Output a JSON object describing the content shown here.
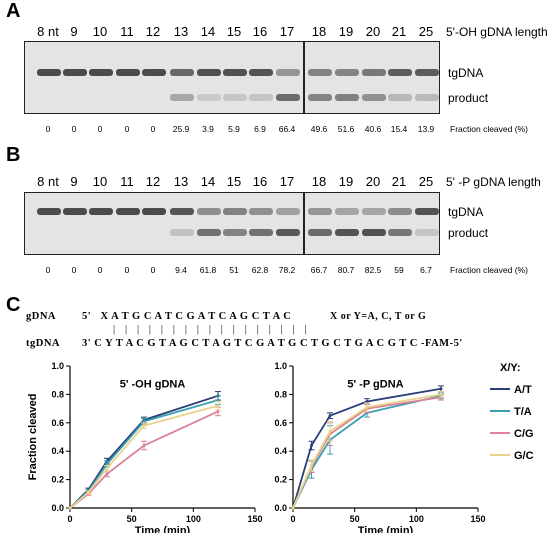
{
  "panel_a": {
    "letter": "A",
    "length_label": "5'-OH gDNA length",
    "lanes": [
      "8 nt",
      "9",
      "10",
      "11",
      "12",
      "13",
      "14",
      "15",
      "16",
      "17",
      "18",
      "19",
      "20",
      "21",
      "25"
    ],
    "tg_label": "tgDNA",
    "product_label": "product",
    "fractions": [
      "0",
      "0",
      "0",
      "0",
      "0",
      "25.9",
      "3.9",
      "5.9",
      "6.9",
      "66.4",
      "49.6",
      "51.6",
      "40.6",
      "15.4",
      "13.9"
    ],
    "fraction_label": "Fraction cleaved  (%)"
  },
  "panel_b": {
    "letter": "B",
    "length_label": "5' -P gDNA length",
    "lanes": [
      "8 nt",
      "9",
      "10",
      "11",
      "12",
      "13",
      "14",
      "15",
      "16",
      "17",
      "18",
      "19",
      "20",
      "21",
      "25"
    ],
    "tg_label": "tgDNA",
    "product_label": "product",
    "fractions": [
      "0",
      "0",
      "0",
      "0",
      "0",
      "9.4",
      "61.8",
      "51",
      "62.8",
      "78.2",
      "66.7",
      "80.7",
      "82.5",
      "59",
      "6.7"
    ],
    "fraction_label": "Fraction cleaved  (%)"
  },
  "panel_c": {
    "letter": "C",
    "gdna_label": "gDNA",
    "gdna_seq": "5'   X A T G C A T C G A T C A G C T A C",
    "pairs": "|   |   |   |   |   |   |   |   |   |   |   |   |   |   |   |   |",
    "tgdna_label": "tgDNA",
    "tgdna_seq": "3' C Y T A C G T A G C T A G T C G A T G C T G C T G A C G T C -FAM-5'",
    "note": "X or Y=A, C, T or G",
    "legend_title": "X/Y:"
  },
  "colors": {
    "AT": "#2a3f7a",
    "TA": "#3a9fb0",
    "CG": "#d9829a",
    "GC": "#e9d28a",
    "gel_bg": "#e4e4e4",
    "band": "#3a3a3a"
  },
  "chart_data": [
    {
      "type": "line",
      "title": "5' -OH gDNA",
      "xlabel": "Time (min)",
      "ylabel": "Fraction cleaved",
      "xlim": [
        0,
        150
      ],
      "ylim": [
        0,
        1.0
      ],
      "xticks": [
        0,
        50,
        100,
        150
      ],
      "yticks": [
        0.0,
        0.2,
        0.4,
        0.6,
        0.8,
        1.0
      ],
      "x": [
        0,
        15,
        30,
        60,
        120
      ],
      "series": [
        {
          "name": "A/T",
          "color": "#2a3f7a",
          "values": [
            0,
            0.13,
            0.33,
            0.62,
            0.79
          ],
          "err": [
            0,
            0.01,
            0.02,
            0.02,
            0.03
          ]
        },
        {
          "name": "T/A",
          "color": "#3a9fb0",
          "values": [
            0,
            0.12,
            0.31,
            0.61,
            0.76
          ],
          "err": [
            0,
            0.01,
            0.02,
            0.02,
            0.03
          ]
        },
        {
          "name": "C/G",
          "color": "#d9829a",
          "values": [
            0,
            0.1,
            0.24,
            0.44,
            0.68
          ],
          "err": [
            0,
            0.01,
            0.02,
            0.03,
            0.03
          ]
        },
        {
          "name": "G/C",
          "color": "#e9d28a",
          "values": [
            0,
            0.11,
            0.28,
            0.58,
            0.72
          ],
          "err": [
            0,
            0.01,
            0.02,
            0.02,
            0.03
          ]
        }
      ]
    },
    {
      "type": "line",
      "title": "5' -P gDNA",
      "xlabel": "Time (min)",
      "ylabel": "",
      "xlim": [
        0,
        150
      ],
      "ylim": [
        0,
        1.0
      ],
      "xticks": [
        0,
        50,
        100,
        150
      ],
      "yticks": [
        0.0,
        0.2,
        0.4,
        0.6,
        0.8,
        1.0
      ],
      "x": [
        0,
        15,
        30,
        60,
        120
      ],
      "series": [
        {
          "name": "A/T",
          "color": "#2a3f7a",
          "values": [
            0,
            0.44,
            0.65,
            0.75,
            0.84
          ],
          "err": [
            0,
            0.03,
            0.02,
            0.02,
            0.02
          ]
        },
        {
          "name": "T/A",
          "color": "#3a9fb0",
          "values": [
            0,
            0.27,
            0.48,
            0.67,
            0.79
          ],
          "err": [
            0,
            0.06,
            0.1,
            0.03,
            0.02
          ]
        },
        {
          "name": "C/G",
          "color": "#d9829a",
          "values": [
            0,
            0.29,
            0.52,
            0.7,
            0.78
          ],
          "err": [
            0,
            0.04,
            0.08,
            0.03,
            0.02
          ]
        },
        {
          "name": "G/C",
          "color": "#e9d28a",
          "values": [
            0,
            0.3,
            0.54,
            0.71,
            0.8
          ],
          "err": [
            0,
            0.04,
            0.07,
            0.03,
            0.02
          ]
        }
      ]
    }
  ]
}
